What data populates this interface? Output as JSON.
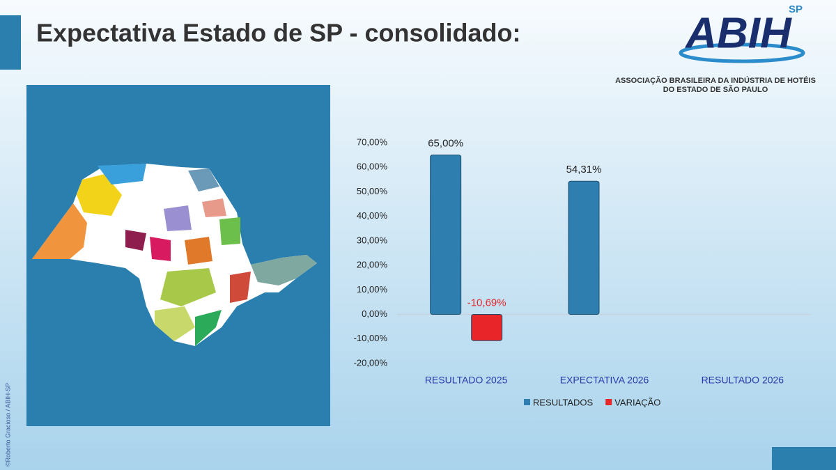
{
  "header": {
    "title": "Expectativa Estado de SP - consolidado:"
  },
  "logo": {
    "mark": "ABIH",
    "region": "SP",
    "line1": "ASSOCIAÇÃO BRASILEIRA DA INDÚSTRIA DE HOTÉIS",
    "line2": "DO ESTADO DE SÃO PAULO"
  },
  "credit": "©Roberto Gracioso / ABIH-SP",
  "chart_data": {
    "type": "bar",
    "categories": [
      "RESULTADO 2025",
      "EXPECTATIVA 2026",
      "RESULTADO 2026"
    ],
    "series": [
      {
        "name": "RESULTADOS",
        "color": "#2e7fb0",
        "values": [
          65,
          54.31,
          null
        ],
        "value_labels": [
          "65,00%",
          "54,31%",
          null
        ]
      },
      {
        "name": "VARIAÇÃO",
        "color": "#e8262a",
        "values": [
          -10.69,
          null,
          null
        ],
        "value_labels": [
          "-10,69%",
          null,
          null
        ]
      }
    ],
    "ylim": [
      -20,
      70
    ],
    "yticks": [
      {
        "value": -20,
        "label": "-20,00%"
      },
      {
        "value": -10,
        "label": "-10,00%"
      },
      {
        "value": 0,
        "label": "0,00%"
      },
      {
        "value": 10,
        "label": "10,00%"
      },
      {
        "value": 20,
        "label": "20,00%"
      },
      {
        "value": 30,
        "label": "30,00%"
      },
      {
        "value": 40,
        "label": "40,00%"
      },
      {
        "value": 50,
        "label": "50,00%"
      },
      {
        "value": 60,
        "label": "60,00%"
      },
      {
        "value": 70,
        "label": "70,00%"
      }
    ],
    "grid": false,
    "legend": "bottom"
  }
}
